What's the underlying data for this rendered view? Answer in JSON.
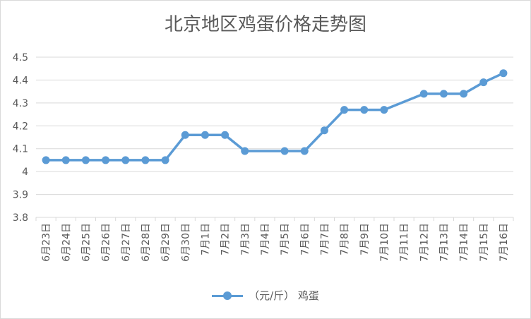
{
  "chart_data": {
    "type": "line",
    "title": "北京地区鸡蛋价格走势图",
    "categories": [
      "6月23日",
      "6月24日",
      "6月25日",
      "6月26日",
      "6月27日",
      "6月28日",
      "6月29日",
      "6月30日",
      "7月1日",
      "7月2日",
      "7月3日",
      "7月4日",
      "7月5日",
      "7月6日",
      "7月7日",
      "7月8日",
      "7月9日",
      "7月10日",
      "7月11日",
      "7月12日",
      "7月13日",
      "7月14日",
      "7月15日",
      "7月16日"
    ],
    "series": [
      {
        "name": "（元/斤） 鸡蛋",
        "color": "#5b9bd5",
        "values": [
          4.05,
          4.05,
          4.05,
          4.05,
          4.05,
          4.05,
          4.05,
          4.16,
          4.16,
          4.16,
          4.09,
          null,
          4.09,
          4.09,
          4.18,
          4.27,
          4.27,
          4.27,
          null,
          4.34,
          4.34,
          4.34,
          4.39,
          4.43
        ]
      }
    ],
    "ylim": [
      3.8,
      4.5
    ],
    "yticks": [
      "3.8",
      "3.9",
      "4",
      "4.1",
      "4.2",
      "4.3",
      "4.4",
      "4.5"
    ],
    "grid": true,
    "legend": "bottom"
  }
}
